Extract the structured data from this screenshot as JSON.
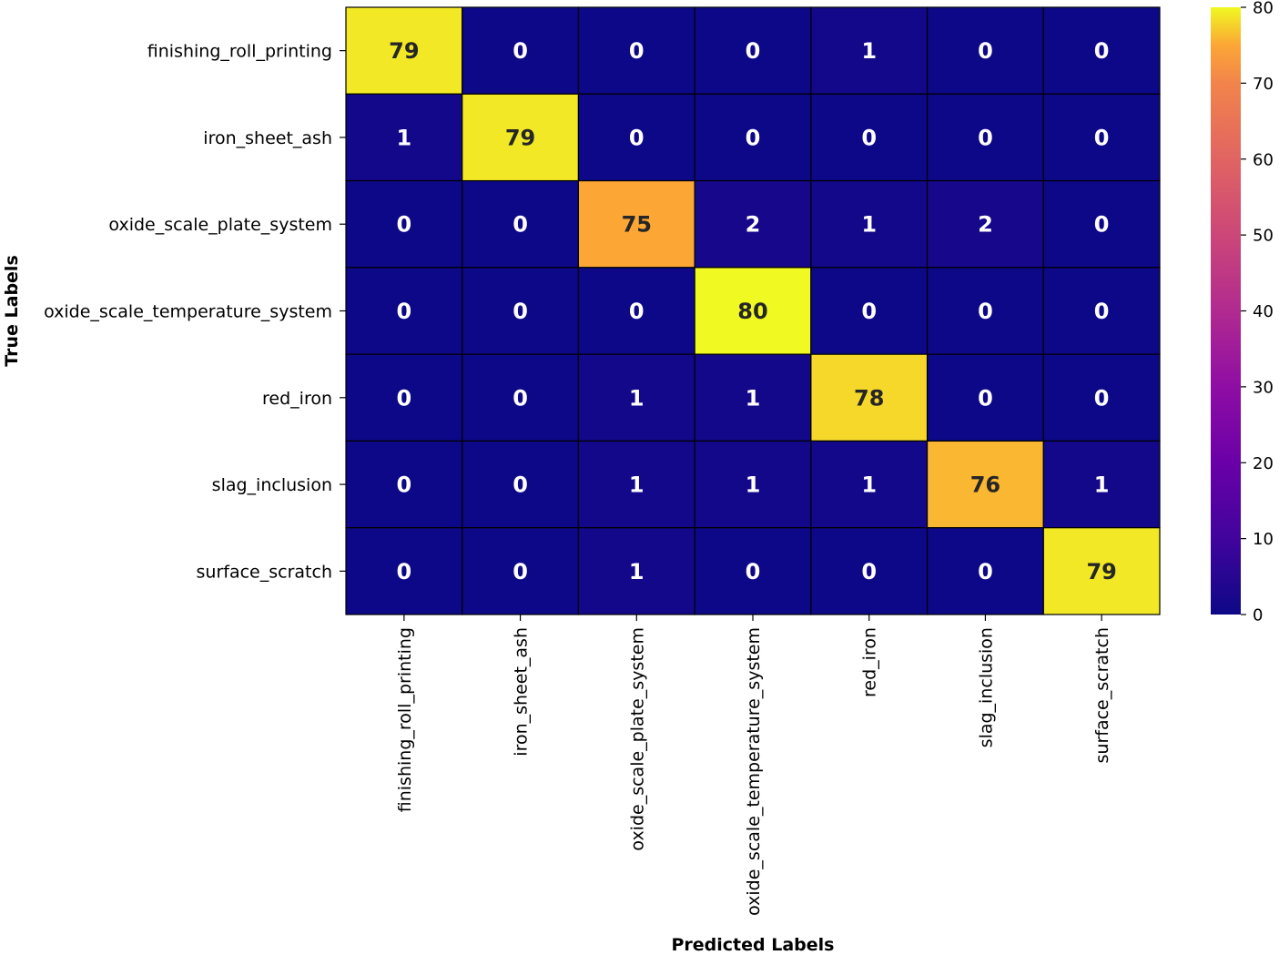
{
  "chart_data": {
    "type": "heatmap",
    "title": "",
    "xlabel": "Predicted Labels",
    "ylabel": "True Labels",
    "x_categories": [
      "finishing_roll_printing",
      "iron_sheet_ash",
      "oxide_scale_plate_system",
      "oxide_scale_temperature_system",
      "red_iron",
      "slag_inclusion",
      "surface_scratch"
    ],
    "y_categories": [
      "finishing_roll_printing",
      "iron_sheet_ash",
      "oxide_scale_plate_system",
      "oxide_scale_temperature_system",
      "red_iron",
      "slag_inclusion",
      "surface_scratch"
    ],
    "values": [
      [
        79,
        0,
        0,
        0,
        1,
        0,
        0
      ],
      [
        1,
        79,
        0,
        0,
        0,
        0,
        0
      ],
      [
        0,
        0,
        75,
        2,
        1,
        2,
        0
      ],
      [
        0,
        0,
        0,
        80,
        0,
        0,
        0
      ],
      [
        0,
        0,
        1,
        1,
        78,
        0,
        0
      ],
      [
        0,
        0,
        1,
        1,
        1,
        76,
        1
      ],
      [
        0,
        0,
        1,
        0,
        0,
        0,
        79
      ]
    ],
    "colormap": "plasma",
    "vmin": 0,
    "vmax": 80,
    "colorbar_ticks": [
      0,
      10,
      20,
      30,
      40,
      50,
      60,
      70,
      80
    ],
    "colorbar_position": "right",
    "annotations": true,
    "cell_border_color": "#000000"
  }
}
